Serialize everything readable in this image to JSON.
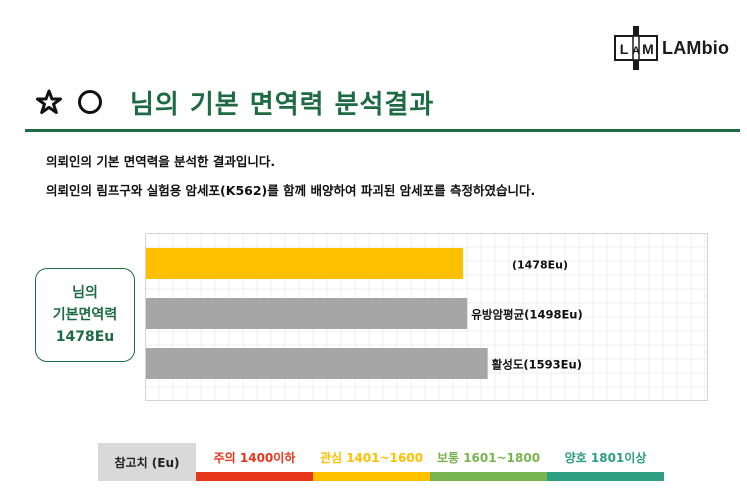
{
  "logo": {
    "text": "LAMbio",
    "mark_letters": [
      "L",
      "A",
      "M"
    ]
  },
  "header": {
    "title": "님의 기본 면역력 분석결과"
  },
  "description": {
    "line1": "의뢰인의 기본 면역력을 분석한 결과입니다.",
    "line2": "의뢰인의 림프구와 실험용 암세포(K562)를 함께 배양하여 파괴된 암세포를 측정하였습니다."
  },
  "result_box": {
    "line1": "님의",
    "line2": "기본면역력",
    "line3": "1478Eu"
  },
  "chart_data": {
    "type": "bar",
    "orientation": "horizontal",
    "categories": [
      "",
      "유방암평균",
      "활성도"
    ],
    "values": [
      1478,
      1498,
      1593
    ],
    "value_unit": "Eu",
    "data_labels": [
      "(1478Eu)",
      "유방암평균(1498Eu)",
      "활성도(1593Eu)"
    ],
    "colors": [
      "#ffc000",
      "#a6a6a6",
      "#a6a6a6"
    ],
    "xlim": [
      0,
      2625
    ],
    "grid": true,
    "axis_labels_shown": false
  },
  "legend": {
    "reference_label": "참고치 (Eu)",
    "items": [
      {
        "label": "주의 1400이하",
        "color": "#e8361b"
      },
      {
        "label": "관심 1401~1600",
        "color": "#ffc000"
      },
      {
        "label": "보통 1601~1800",
        "color": "#78b450"
      },
      {
        "label": "양호 1801이상",
        "color": "#2e9e80"
      }
    ]
  }
}
